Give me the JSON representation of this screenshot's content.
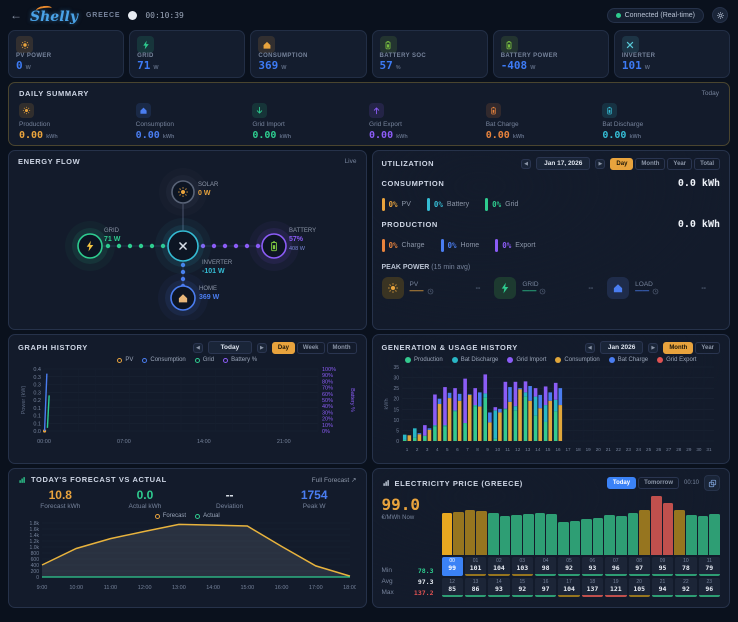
{
  "header": {
    "back_arrow": "←",
    "logo_text": "Shelly",
    "region": "GREECE",
    "time": "00:10:39",
    "connection_status": "Connected (Real-time)"
  },
  "stat_cards": [
    {
      "label": "PV POWER",
      "value": "0",
      "unit": "W",
      "icon": "sun",
      "color": "#e8a33d"
    },
    {
      "label": "GRID",
      "value": "71",
      "unit": "W",
      "icon": "bolt",
      "color": "#2ecc8f"
    },
    {
      "label": "CONSUMPTION",
      "value": "369",
      "unit": "W",
      "icon": "home",
      "color": "#e8a33d"
    },
    {
      "label": "BATTERY SOC",
      "value": "57",
      "unit": "%",
      "icon": "battery",
      "color": "#7ec641"
    },
    {
      "label": "BATTERY POWER",
      "value": "-408",
      "unit": "W",
      "icon": "battery",
      "color": "#7ec641"
    },
    {
      "label": "INVERTER",
      "value": "101",
      "unit": "W",
      "icon": "tool",
      "color": "#58c7d6"
    }
  ],
  "daily_summary": {
    "title": "DAILY SUMMARY",
    "period": "Today",
    "items": [
      {
        "label": "Production",
        "value": "0.00",
        "unit": "kWh",
        "icon": "sun",
        "color": "#e8a33d"
      },
      {
        "label": "Consumption",
        "value": "0.00",
        "unit": "kWh",
        "icon": "home",
        "color": "#4a7df0"
      },
      {
        "label": "Grid Import",
        "value": "0.00",
        "unit": "kWh",
        "icon": "arrow-down",
        "color": "#2ecc8f"
      },
      {
        "label": "Grid Export",
        "value": "0.00",
        "unit": "kWh",
        "icon": "arrow-up",
        "color": "#8b5cf6"
      },
      {
        "label": "Bat Charge",
        "value": "0.00",
        "unit": "kWh",
        "icon": "battery",
        "color": "#e8833d"
      },
      {
        "label": "Bat Discharge",
        "value": "0.00",
        "unit": "kWh",
        "icon": "battery",
        "color": "#35bcd4"
      }
    ]
  },
  "energy_flow": {
    "title": "ENERGY FLOW",
    "live_label": "Live",
    "nodes": [
      {
        "id": "solar",
        "label": "SOLAR",
        "value": "0 W",
        "value_color": "#e8a33d",
        "ring": "#5a6478",
        "icon": "sun",
        "icon_color": "#e8a33d"
      },
      {
        "id": "grid",
        "label": "GRID",
        "value": "71 W",
        "value_color": "#2ecc8f",
        "ring": "#2ecc8f",
        "icon": "bolt",
        "icon_color": "#f5c542"
      },
      {
        "id": "inverter",
        "label": "INVERTER",
        "value": "-101 W",
        "value_color": "#35bcd4",
        "ring": "#35bcd4",
        "icon": "tool",
        "icon_color": "#d8dee8"
      },
      {
        "id": "battery",
        "label": "BATTERY",
        "value": "57%",
        "sub_value": "408 W",
        "value_color": "#8b5cf6",
        "ring": "#8b5cf6",
        "icon": "battery",
        "icon_color": "#7ec641"
      },
      {
        "id": "home",
        "label": "HOME",
        "value": "369 W",
        "value_color": "#4a7df0",
        "ring": "#4a7df0",
        "icon": "home",
        "icon_color": "#e8b77a"
      }
    ]
  },
  "utilization": {
    "title": "UTILIZATION",
    "date": "Jan 17, 2026",
    "tabs": [
      "Day",
      "Month",
      "Year",
      "Total"
    ],
    "active_tab": "Day",
    "consumption": {
      "label": "CONSUMPTION",
      "value": "0.0 kWh",
      "breakdown": [
        {
          "pct": "0%",
          "label": "PV",
          "color": "#e8a33d"
        },
        {
          "pct": "0%",
          "label": "Battery",
          "color": "#35bcd4"
        },
        {
          "pct": "0%",
          "label": "Grid",
          "color": "#2ecc8f"
        }
      ]
    },
    "production": {
      "label": "PRODUCTION",
      "value": "0.0 kWh",
      "breakdown": [
        {
          "pct": "0%",
          "label": "Charge",
          "color": "#e8833d"
        },
        {
          "pct": "0%",
          "label": "Home",
          "color": "#4a7df0"
        },
        {
          "pct": "0%",
          "label": "Export",
          "color": "#8b5cf6"
        }
      ]
    },
    "peak_power": {
      "title": "PEAK POWER",
      "subtitle": "(15 min avg)",
      "items": [
        {
          "label": "PV",
          "value": "--",
          "time": "--",
          "color": "#e8a33d",
          "icon": "sun",
          "tint": "#3a3423"
        },
        {
          "label": "GRID",
          "value": "--",
          "time": "--",
          "color": "#2ecc8f",
          "icon": "bolt",
          "tint": "#1d3a30"
        },
        {
          "label": "LOAD",
          "value": "--",
          "time": "--",
          "color": "#4a7df0",
          "icon": "home",
          "tint": "#1f2c4a"
        }
      ]
    }
  },
  "graph_history": {
    "title": "GRAPH HISTORY",
    "nav_label": "Today",
    "tabs": [
      "Day",
      "Week",
      "Month"
    ],
    "active_tab": "Day",
    "legend": [
      {
        "label": "PV",
        "color": "#e8a33d"
      },
      {
        "label": "Consumption",
        "color": "#4a7df0"
      },
      {
        "label": "Grid",
        "color": "#2ecc8f"
      },
      {
        "label": "Battery %",
        "color": "#8b5cf6"
      }
    ]
  },
  "generation_history": {
    "title": "GENERATION & USAGE HISTORY",
    "nav_label": "Jan 2026",
    "tabs": [
      "Month",
      "Year"
    ],
    "active_tab": "Month",
    "legend": [
      {
        "label": "Production",
        "color": "#34c98e"
      },
      {
        "label": "Bat Discharge",
        "color": "#29b6c5"
      },
      {
        "label": "Grid Import",
        "color": "#8b5cf6"
      },
      {
        "label": "Consumption",
        "color": "#e0a63a"
      },
      {
        "label": "Bat Charge",
        "color": "#4a7df0"
      },
      {
        "label": "Grid Export",
        "color": "#e05252"
      }
    ]
  },
  "forecast": {
    "title": "TODAY'S FORECAST VS ACTUAL",
    "link_label": "Full Forecast ↗",
    "stats": [
      {
        "value": "10.8",
        "label": "Forecast kWh",
        "color": "#e8a33d"
      },
      {
        "value": "0.0",
        "label": "Actual kWh",
        "color": "#2ecc8f"
      },
      {
        "value": "--",
        "label": "Deviation",
        "color": "#e2e8f0"
      },
      {
        "value": "1754",
        "label": "Peak W",
        "color": "#4a7df0"
      }
    ],
    "legend": [
      {
        "label": "Forecast",
        "color": "#e8a33d"
      },
      {
        "label": "Actual",
        "color": "#2ecc8f"
      }
    ]
  },
  "electricity_price": {
    "title": "ELECTRICITY PRICE (GREECE)",
    "tabs": [
      "Today",
      "Tomorrow"
    ],
    "active_tab": "Today",
    "time": "00:10",
    "now_value": "99.0",
    "now_unit": "€/MWh Now",
    "stats": [
      {
        "label": "Min",
        "value": "78.3",
        "color": "#2ecc8f"
      },
      {
        "label": "Avg",
        "value": "97.3",
        "color": "#e2e8f0"
      },
      {
        "label": "Max",
        "value": "137.2",
        "color": "#e05252"
      }
    ]
  },
  "chart_data": [
    {
      "id": "graph_history",
      "type": "line",
      "title": "Graph History (Today)",
      "xlabel_ticks": [
        "00:00",
        "07:00",
        "14:00",
        "21:00"
      ],
      "x_range_hours": [
        0,
        24
      ],
      "left_axis": {
        "label": "Power (kW)",
        "ticks": [
          "0.4",
          "0.3",
          "0.3",
          "0.3",
          "0.2",
          "0.1",
          "0.1",
          "0.1",
          "0.0"
        ],
        "min": 0,
        "max": 0.4
      },
      "right_axis": {
        "label": "Battery %",
        "ticks": [
          "100%",
          "90%",
          "80%",
          "70%",
          "60%",
          "50%",
          "40%",
          "30%",
          "20%",
          "10%",
          "0%"
        ],
        "min": 0,
        "max": 100
      },
      "grid": true,
      "series": [
        {
          "name": "PV",
          "color": "#e8a33d",
          "points": [
            [
              0.05,
              0
            ]
          ]
        },
        {
          "name": "Consumption",
          "color": "#4a7df0",
          "points": [
            [
              0.05,
              0.0
            ],
            [
              0.25,
              0.37
            ]
          ]
        },
        {
          "name": "Grid",
          "color": "#2ecc8f",
          "points": [
            [
              0.3,
              0.02
            ],
            [
              0.45,
              0.23
            ]
          ]
        },
        {
          "name": "Battery %",
          "color": "#8b5cf6",
          "points": []
        }
      ]
    },
    {
      "id": "generation_usage",
      "type": "bar",
      "subtype": "grouped-stacked",
      "title": "Generation & Usage History (Jan 2026)",
      "ylabel": "kWh",
      "ylim": [
        0,
        35
      ],
      "yticks": [
        0,
        5,
        10,
        15,
        20,
        25,
        30,
        35
      ],
      "categories": [
        1,
        2,
        3,
        4,
        5,
        6,
        7,
        8,
        9,
        10,
        11,
        12,
        13,
        14,
        15,
        16,
        17,
        18,
        19,
        20,
        21,
        22,
        23,
        24,
        25,
        26,
        27,
        28,
        29,
        30,
        31
      ],
      "groups": [
        {
          "name": "generation",
          "series": [
            {
              "name": "Production",
              "color": "#34c98e",
              "values": [
                0.5,
                1.5,
                2.5,
                7,
                7,
                14,
                8.5,
                16.5,
                20.5,
                1,
                15,
                14.5,
                21,
                12,
                9,
                14,
                0,
                0,
                0,
                0,
                0,
                0,
                0,
                0,
                0,
                0,
                0,
                0,
                0,
                0,
                0
              ]
            },
            {
              "name": "Bat Discharge",
              "color": "#29b6c5",
              "values": [
                2.5,
                4.5,
                0,
                0.5,
                0.5,
                0.5,
                0,
                0.5,
                2,
                13.5,
                0.3,
                2,
                2,
                9,
                8,
                5.5,
                0,
                0,
                0,
                0,
                0,
                0,
                0,
                0,
                0,
                0,
                0,
                0,
                0,
                0,
                0
              ]
            },
            {
              "name": "Grid Import",
              "color": "#8b5cf6",
              "values": [
                0,
                0,
                5,
                14.5,
                18,
                10.5,
                21,
                8,
                9,
                1.5,
                12.7,
                11.5,
                5.2,
                4,
                8.8,
                8,
                0,
                0,
                0,
                0,
                0,
                0,
                0,
                0,
                0,
                0,
                0,
                0,
                0,
                0,
                0
              ]
            }
          ]
        },
        {
          "name": "usage",
          "series": [
            {
              "name": "Consumption",
              "color": "#e0a63a",
              "values": [
                2.7,
                3.2,
                5.3,
                17.5,
                20.3,
                19,
                21.8,
                16.3,
                8.8,
                13.5,
                18.5,
                24.5,
                19,
                15.5,
                19,
                17,
                0,
                0,
                0,
                0,
                0,
                0,
                0,
                0,
                0,
                0,
                0,
                0,
                0,
                0,
                0
              ]
            },
            {
              "name": "Bat Charge",
              "color": "#4a7df0",
              "values": [
                0,
                0.5,
                0.7,
                2.5,
                2.5,
                3.3,
                0.3,
                6.7,
                4.7,
                1.7,
                7,
                0.5,
                7,
                6.3,
                4,
                8,
                0,
                0,
                0,
                0,
                0,
                0,
                0,
                0,
                0,
                0,
                0,
                0,
                0,
                0,
                0
              ]
            },
            {
              "name": "Grid Export",
              "color": "#e05252",
              "values": [
                0,
                0,
                0,
                0,
                0,
                0,
                0,
                0,
                0,
                0,
                0,
                0,
                0,
                0,
                0,
                0,
                0,
                0,
                0,
                0,
                0,
                0,
                0,
                0,
                0,
                0,
                0,
                0,
                0,
                0,
                0
              ]
            }
          ]
        }
      ]
    },
    {
      "id": "forecast_vs_actual",
      "type": "area",
      "title": "Today's Forecast vs Actual (W)",
      "x": [
        "9:00",
        "10:00",
        "11:00",
        "12:00",
        "13:00",
        "14:00",
        "15:00",
        "16:00",
        "17:00",
        "18:00"
      ],
      "yticks": [
        "1.8k",
        "1.6k",
        "1.4k",
        "1.2k",
        "1.0k",
        "800",
        "600",
        "400",
        "200",
        "0"
      ],
      "ylim": [
        0,
        1800
      ],
      "series": [
        {
          "name": "Forecast",
          "color": "#e8b33d",
          "values": [
            400,
            950,
            1280,
            1520,
            1754,
            1730,
            1700,
            1020,
            370,
            30
          ]
        },
        {
          "name": "Actual",
          "color": "#2ecc8f",
          "values": [
            0,
            0,
            0,
            0,
            0,
            0,
            0,
            0,
            0,
            0
          ]
        }
      ]
    },
    {
      "id": "electricity_price",
      "type": "bar",
      "title": "Electricity Price (Greece) €/MWh",
      "hours": [
        "00",
        "01",
        "02",
        "03",
        "04",
        "05",
        "06",
        "07",
        "08",
        "09",
        "10",
        "11",
        "12",
        "13",
        "14",
        "15",
        "16",
        "17",
        "18",
        "19",
        "20",
        "21",
        "22",
        "23"
      ],
      "values": [
        99,
        101,
        104,
        103,
        98,
        92,
        93,
        96,
        97,
        95,
        78,
        79,
        85,
        86,
        93,
        92,
        97,
        104,
        137,
        121,
        105,
        94,
        92,
        96
      ],
      "current_hour": 0,
      "min": 78.3,
      "avg": 97.3,
      "max": 137.2,
      "colors": {
        "current": "#e8a820",
        "low": "#2e9e74",
        "mid": "#96751f",
        "high": "#c0504d"
      },
      "thresholds": {
        "mid": 100,
        "high": 115
      }
    }
  ]
}
